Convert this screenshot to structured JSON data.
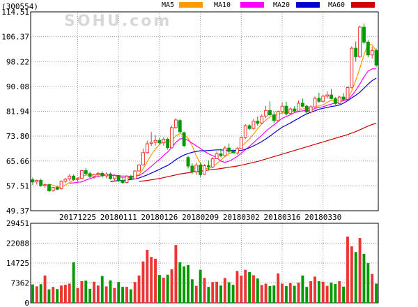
{
  "stock_code": "(300554)",
  "watermark": "SOHU.com",
  "legend": [
    {
      "label": "MA5",
      "color": "#ff9900"
    },
    {
      "label": "MA10",
      "color": "#ff00ff"
    },
    {
      "label": "MA20",
      "color": "#0000cc"
    },
    {
      "label": "MA60",
      "color": "#cc0000"
    }
  ],
  "colors": {
    "up": "#ee3333",
    "down": "#009900",
    "grid": "#999999",
    "axis": "#000000"
  },
  "chart_data": [
    {
      "type": "candlestick",
      "price_ticks": [
        "114.51",
        "106.37",
        "98.22",
        "90.08",
        "81.94",
        "73.80",
        "65.66",
        "57.51",
        "49.37"
      ],
      "ylim": [
        49.37,
        114.51
      ],
      "date_labels": [
        "20171225",
        "20180111",
        "20180126",
        "20180209",
        "20180302",
        "20180316",
        "20180330"
      ],
      "ohlc": [
        [
          59.5,
          60.2,
          57.8,
          58.8
        ],
        [
          58.8,
          59.6,
          57.9,
          59.3
        ],
        [
          59.3,
          59.9,
          57.2,
          57.6
        ],
        [
          57.6,
          58.3,
          56.9,
          57.9
        ],
        [
          57.9,
          58.2,
          55.5,
          55.9
        ],
        [
          56.0,
          57.2,
          55.6,
          57.0
        ],
        [
          57.0,
          57.6,
          56.1,
          56.4
        ],
        [
          56.6,
          59.3,
          56.3,
          59.0
        ],
        [
          59.0,
          60.1,
          58.4,
          59.7
        ],
        [
          59.8,
          61.3,
          59.1,
          60.7
        ],
        [
          60.7,
          61.2,
          59.2,
          59.6
        ],
        [
          59.6,
          60.2,
          58.8,
          59.9
        ],
        [
          60.0,
          62.8,
          59.8,
          62.5
        ],
        [
          62.5,
          63.3,
          61.1,
          61.5
        ],
        [
          61.5,
          62.1,
          60.1,
          60.6
        ],
        [
          60.6,
          61.5,
          59.8,
          61.2
        ],
        [
          61.2,
          62.1,
          60.4,
          61.6
        ],
        [
          61.6,
          62.3,
          60.2,
          60.8
        ],
        [
          60.8,
          61.9,
          60.0,
          61.4
        ],
        [
          61.4,
          61.9,
          59.6,
          59.9
        ],
        [
          59.9,
          61.3,
          58.9,
          60.9
        ],
        [
          60.9,
          61.1,
          59.0,
          59.3
        ],
        [
          59.3,
          60.3,
          58.2,
          58.6
        ],
        [
          58.6,
          61.0,
          58.4,
          60.7
        ],
        [
          60.7,
          61.1,
          59.5,
          59.8
        ],
        [
          59.8,
          62.6,
          59.6,
          62.4
        ],
        [
          62.4,
          64.7,
          62.1,
          64.3
        ],
        [
          64.4,
          69.7,
          64.1,
          68.4
        ],
        [
          68.4,
          72.3,
          68.1,
          71.3
        ],
        [
          71.4,
          75.2,
          70.6,
          71.8
        ],
        [
          71.8,
          74.1,
          70.7,
          72.4
        ],
        [
          72.4,
          73.3,
          71.0,
          71.6
        ],
        [
          71.6,
          73.4,
          70.7,
          72.8
        ],
        [
          72.8,
          73.3,
          69.4,
          70.0
        ],
        [
          70.0,
          77.2,
          69.8,
          76.6
        ],
        [
          76.6,
          79.7,
          76.2,
          79.1
        ],
        [
          78.9,
          79.4,
          74.8,
          75.2
        ],
        [
          74.9,
          75.3,
          70.2,
          70.7
        ],
        [
          66.8,
          67.4,
          63.2,
          64.0
        ],
        [
          64.0,
          64.9,
          61.4,
          62.1
        ],
        [
          62.2,
          65.1,
          61.1,
          64.3
        ],
        [
          64.3,
          65.2,
          60.4,
          61.2
        ],
        [
          61.3,
          64.6,
          61.1,
          64.1
        ],
        [
          64.1,
          65.8,
          62.6,
          63.7
        ],
        [
          63.7,
          66.9,
          63.3,
          66.4
        ],
        [
          66.4,
          68.8,
          66.2,
          68.0
        ],
        [
          68.0,
          69.7,
          66.8,
          67.4
        ],
        [
          67.4,
          70.6,
          67.1,
          69.9
        ],
        [
          69.9,
          71.4,
          68.1,
          68.8
        ],
        [
          68.8,
          69.7,
          68.3,
          68.3
        ],
        [
          68.3,
          70.2,
          67.7,
          69.7
        ],
        [
          69.7,
          73.7,
          69.5,
          73.3
        ],
        [
          73.3,
          77.7,
          72.8,
          77.2
        ],
        [
          77.2,
          77.7,
          75.8,
          76.3
        ],
        [
          76.3,
          79.4,
          75.9,
          78.7
        ],
        [
          78.7,
          80.2,
          77.2,
          78.0
        ],
        [
          78.1,
          80.9,
          77.7,
          80.3
        ],
        [
          80.4,
          83.7,
          79.7,
          82.2
        ],
        [
          82.2,
          85.2,
          80.4,
          80.8
        ],
        [
          80.8,
          81.9,
          78.2,
          78.9
        ],
        [
          78.9,
          82.2,
          78.7,
          81.9
        ],
        [
          81.9,
          84.8,
          81.2,
          83.6
        ],
        [
          83.6,
          85.1,
          80.6,
          81.1
        ],
        [
          81.2,
          83.2,
          80.7,
          82.7
        ],
        [
          82.7,
          83.6,
          81.5,
          82.0
        ],
        [
          82.0,
          85.5,
          81.6,
          84.6
        ],
        [
          84.6,
          86.1,
          83.2,
          83.6
        ],
        [
          83.6,
          84.1,
          81.1,
          81.7
        ],
        [
          81.7,
          83.9,
          81.2,
          83.4
        ],
        [
          83.4,
          86.8,
          83.1,
          86.2
        ],
        [
          86.2,
          88.0,
          84.7,
          85.2
        ],
        [
          85.2,
          87.4,
          84.8,
          86.9
        ],
        [
          86.9,
          88.5,
          86.1,
          87.3
        ],
        [
          87.3,
          89.2,
          85.8,
          86.1
        ],
        [
          86.1,
          86.6,
          84.1,
          84.5
        ],
        [
          84.5,
          87.0,
          84.2,
          86.6
        ],
        [
          86.6,
          87.9,
          85.4,
          85.9
        ],
        [
          85.9,
          90.1,
          85.5,
          89.7
        ],
        [
          89.8,
          103.2,
          89.4,
          102.6
        ],
        [
          102.6,
          104.8,
          98.2,
          99.8
        ],
        [
          99.8,
          110.0,
          99.4,
          109.5
        ],
        [
          109.5,
          110.7,
          104.0,
          104.6
        ],
        [
          104.6,
          105.3,
          99.6,
          100.4
        ],
        [
          100.4,
          103.1,
          99.2,
          101.8
        ],
        [
          101.8,
          102.5,
          96.5,
          97.1
        ]
      ],
      "series": [
        {
          "name": "MA5",
          "values": [
            null,
            null,
            null,
            null,
            58.1,
            57.7,
            57.2,
            57.0,
            57.8,
            58.6,
            59.4,
            60.1,
            60.6,
            61.0,
            61.1,
            61.1,
            61.1,
            61.2,
            61.1,
            61.0,
            60.8,
            60.5,
            60.2,
            60.2,
            60.2,
            60.6,
            61.2,
            63.1,
            65.4,
            67.7,
            69.6,
            71.1,
            71.9,
            71.7,
            72.5,
            73.9,
            74.6,
            74.3,
            73.1,
            70.6,
            67.3,
            64.9,
            63.3,
            63.1,
            63.9,
            64.7,
            66.0,
            67.1,
            68.0,
            68.7,
            69.5,
            70.3,
            71.6,
            72.9,
            74.5,
            76.2,
            77.8,
            79.1,
            80.0,
            80.5,
            81.0,
            81.4,
            81.5,
            81.5,
            82.3,
            82.6,
            82.7,
            82.8,
            83.0,
            83.6,
            83.7,
            84.0,
            84.9,
            85.5,
            85.4,
            85.5,
            85.7,
            86.0,
            88.6,
            92.1,
            96.1,
            100.4,
            104.1,
            103.7,
            101.7
          ]
        },
        {
          "name": "MA10",
          "values": [
            null,
            null,
            null,
            null,
            null,
            null,
            null,
            null,
            null,
            58.4,
            58.5,
            58.7,
            58.8,
            59.4,
            59.9,
            60.3,
            60.6,
            60.9,
            61.1,
            61.0,
            61.0,
            60.8,
            60.7,
            60.7,
            60.6,
            60.7,
            60.9,
            61.7,
            62.8,
            63.9,
            65.1,
            66.2,
            67.5,
            68.6,
            70.1,
            71.8,
            72.9,
            73.1,
            72.4,
            71.5,
            70.6,
            69.8,
            68.8,
            68.0,
            67.4,
            66.8,
            65.6,
            65.2,
            65.6,
            66.3,
            67.1,
            68.2,
            69.3,
            70.5,
            71.6,
            72.9,
            74.1,
            75.4,
            76.5,
            77.5,
            78.6,
            79.6,
            80.2,
            80.8,
            81.5,
            81.8,
            82.1,
            82.2,
            82.2,
            82.9,
            83.2,
            83.4,
            83.9,
            84.3,
            84.7,
            85.1,
            85.4,
            85.7,
            87.0,
            88.8,
            90.9,
            93.2,
            95.1,
            95.8,
            95.9
          ]
        },
        {
          "name": "MA20",
          "values": [
            null,
            null,
            null,
            null,
            null,
            null,
            null,
            null,
            null,
            null,
            null,
            null,
            null,
            null,
            null,
            null,
            null,
            null,
            null,
            58.9,
            59.1,
            59.2,
            59.3,
            59.4,
            59.6,
            59.8,
            60.1,
            60.6,
            61.1,
            61.7,
            62.3,
            62.9,
            63.6,
            64.2,
            65.1,
            66.1,
            66.9,
            67.6,
            68.1,
            68.5,
            68.8,
            69.0,
            69.0,
            69.1,
            69.2,
            69.3,
            69.3,
            69.2,
            69.1,
            69.1,
            69.1,
            69.1,
            69.5,
            70.0,
            70.6,
            71.3,
            72.0,
            72.9,
            73.8,
            74.8,
            75.8,
            76.7,
            77.4,
            78.1,
            78.9,
            79.6,
            80.4,
            81.1,
            81.6,
            82.1,
            82.6,
            82.9,
            83.2,
            83.5,
            83.7,
            84.0,
            84.6,
            85.4,
            86.3,
            87.2,
            88.2,
            89.5,
            90.8,
            92.0,
            92.8
          ]
        },
        {
          "name": "MA60",
          "values": [
            null,
            null,
            null,
            null,
            null,
            null,
            null,
            null,
            null,
            null,
            null,
            null,
            null,
            null,
            null,
            null,
            null,
            null,
            null,
            null,
            null,
            null,
            null,
            null,
            null,
            null,
            59.0,
            59.1,
            59.3,
            59.5,
            59.7,
            59.9,
            60.2,
            60.5,
            60.8,
            61.1,
            61.4,
            61.6,
            61.8,
            62.0,
            62.2,
            62.3,
            62.5,
            62.7,
            62.9,
            63.0,
            63.2,
            63.4,
            63.6,
            63.8,
            64.0,
            64.3,
            64.6,
            64.9,
            65.2,
            65.5,
            65.9,
            66.3,
            66.7,
            67.1,
            67.5,
            67.9,
            68.3,
            68.7,
            69.1,
            69.5,
            69.9,
            70.3,
            70.7,
            71.1,
            71.5,
            71.9,
            72.3,
            72.7,
            73.1,
            73.5,
            73.9,
            74.3,
            74.8,
            75.3,
            75.9,
            76.5,
            77.1,
            77.6,
            78.0
          ]
        }
      ]
    },
    {
      "type": "bar",
      "title": "",
      "volume_ticks": [
        "29451",
        "22088",
        "14725",
        "7362",
        "0"
      ],
      "ylim": [
        0,
        29451
      ],
      "values": [
        6800,
        6100,
        6900,
        10100,
        5000,
        5900,
        5100,
        6400,
        6700,
        7100,
        15000,
        5500,
        8000,
        8200,
        5200,
        7800,
        6400,
        9900,
        6100,
        8300,
        5500,
        7700,
        5900,
        5900,
        5000,
        7700,
        10100,
        15300,
        19600,
        17000,
        16300,
        10300,
        9300,
        10400,
        12400,
        21400,
        15000,
        13500,
        14000,
        8700,
        6300,
        12200,
        9200,
        5900,
        7700,
        7800,
        6400,
        9200,
        7600,
        6700,
        11800,
        10100,
        12200,
        11400,
        10200,
        9000,
        6600,
        7100,
        6200,
        6400,
        10900,
        7100,
        6200,
        7300,
        6300,
        7500,
        10100,
        5900,
        8000,
        9700,
        8000,
        7800,
        6300,
        7500,
        7000,
        8000,
        6000,
        24500,
        20900,
        18800,
        24000,
        18100,
        14700,
        10700,
        7100
      ]
    }
  ]
}
